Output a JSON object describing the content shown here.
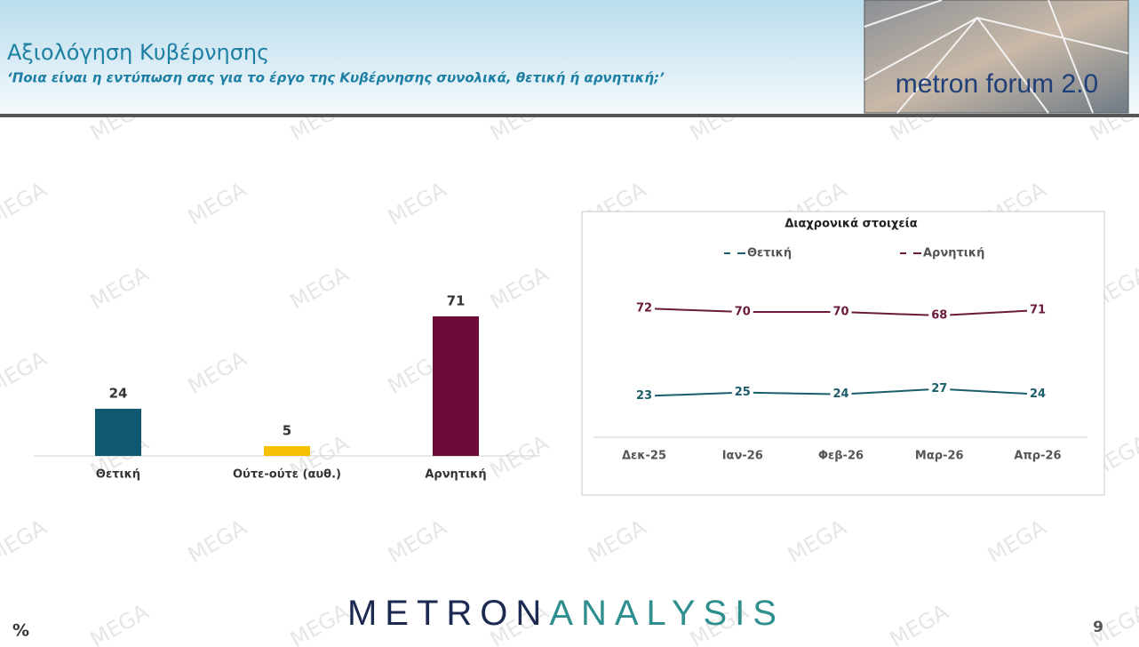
{
  "header": {
    "title": "Αξιολόγηση Κυβέρνησης",
    "subtitle": "‘Ποια είναι η εντύπωση σας για το έργο της Κυβέρνησης συνολικά, θετική ή αρνητική;’",
    "logo": "metron forum 2.0"
  },
  "footer": {
    "brand_first": "METRON",
    "brand_second": "ANALYSIS",
    "unit": "%",
    "page": "9"
  },
  "watermark": "MEGA",
  "chart_data": [
    {
      "type": "bar",
      "categories": [
        "Θετική",
        "Ούτε-ούτε (αυθ.)",
        "Αρνητική"
      ],
      "values": [
        24,
        5,
        71
      ],
      "colors": [
        "#0e5870",
        "#f5c000",
        "#6f0b3b"
      ]
    },
    {
      "type": "line",
      "title": "Διαχρονικά στοιχεία",
      "categories": [
        "Δεκ-25",
        "Ιαν-26",
        "Φεβ-26",
        "Μαρ-26",
        "Απρ-26"
      ],
      "series": [
        {
          "name": "Θετική",
          "color": "#1b5e6b",
          "values": [
            23,
            25,
            24,
            27,
            24
          ]
        },
        {
          "name": "Αρνητική",
          "color": "#6a1a3c",
          "values": [
            72,
            70,
            70,
            68,
            71
          ]
        }
      ]
    }
  ]
}
